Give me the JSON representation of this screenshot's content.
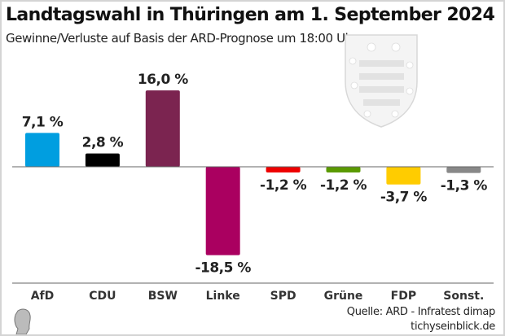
{
  "chart_data": {
    "type": "bar",
    "title": "Landtagswahl in Thüringen am 1. September 2024",
    "subtitle": "Gewinne/Verluste auf Basis der ARD-Prognose um 18:00 Uhr",
    "categories": [
      "AfD",
      "CDU",
      "BSW",
      "Linke",
      "SPD",
      "Grüne",
      "FDP",
      "Sonst."
    ],
    "values": [
      7.1,
      2.8,
      16.0,
      -18.5,
      -1.2,
      -1.2,
      -3.7,
      -1.3
    ],
    "value_labels": [
      "7,1 %",
      "2,8 %",
      "16,0 %",
      "-18,5 %",
      "-1,2 %",
      "-1,2 %",
      "-3,7 %",
      "-1,3 %"
    ],
    "colors": [
      "#009ee0",
      "#000000",
      "#7b2450",
      "#aa0060",
      "#ee0000",
      "#5a9a00",
      "#ffcc00",
      "#888888"
    ],
    "xlabel": "",
    "ylabel": "",
    "ylim": [
      -20,
      17
    ],
    "grid": false,
    "legend": "none"
  },
  "source": {
    "line1": "Quelle: ARD - Infratest dimap",
    "line2": "tichyseinblick.de"
  }
}
